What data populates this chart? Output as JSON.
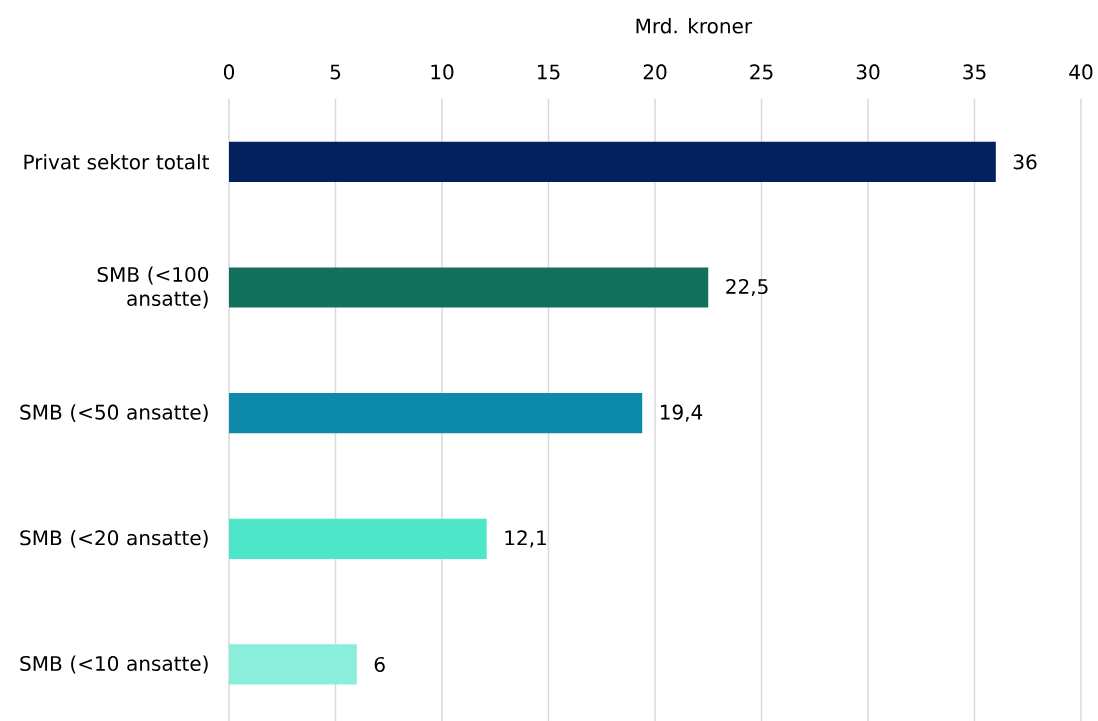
{
  "chart_data": {
    "type": "bar",
    "orientation": "horizontal",
    "xlabel": "Mrd. kroner",
    "categories": [
      "Privat sektor totalt",
      "SMB (<100 ansatte)",
      "SMB (<50 ansatte)",
      "SMB (<20 ansatte)",
      "SMB (<10 ansatte)"
    ],
    "values": [
      36,
      22.5,
      19.4,
      12.1,
      6
    ],
    "colors": [
      "#03205f",
      "#12705c",
      "#0d89a9",
      "#4de6c8",
      "#8aeedb"
    ],
    "value_labels": [
      "36",
      "22,5",
      "19,4",
      "12,1",
      "6"
    ],
    "xlim": [
      0,
      40
    ],
    "xticks": [
      0,
      5,
      10,
      15,
      20,
      25,
      30,
      35,
      40
    ],
    "grid": "x"
  }
}
